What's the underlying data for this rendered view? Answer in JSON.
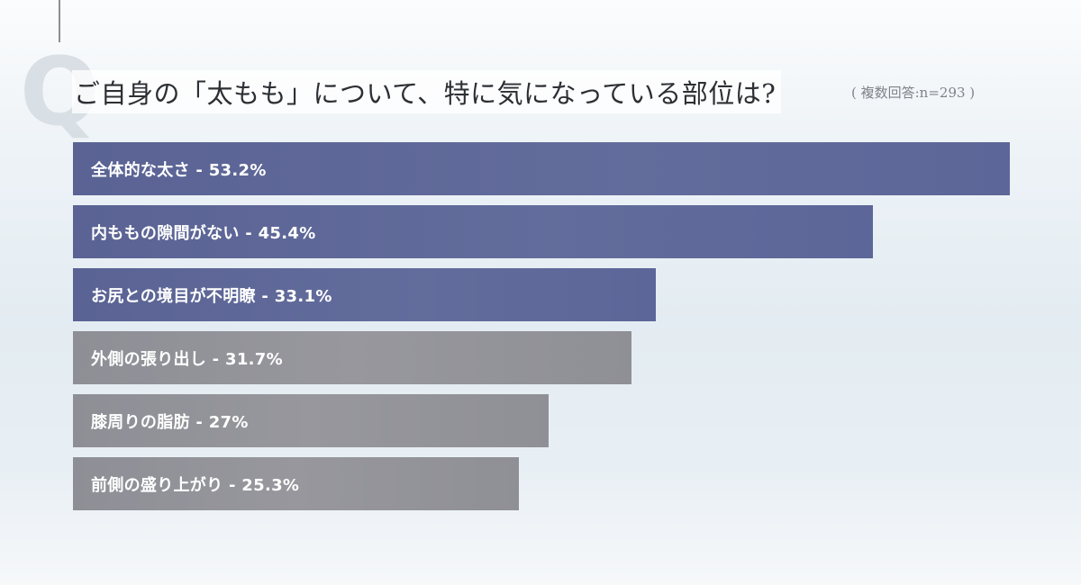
{
  "title": "ご自身の「太もも」について、特に気になっている部位は?",
  "note": "( 複数回答:n=293 )",
  "q_mark": "Q",
  "colors": {
    "highlight": "#5f6999",
    "muted": "#939399",
    "title": "#2c2f33"
  },
  "chart_data": {
    "type": "bar",
    "orientation": "horizontal",
    "title": "ご自身の「太もも」について、特に気になっている部位は?",
    "subtitle": "( 複数回答:n=293 )",
    "unit": "%",
    "xlim": [
      0,
      53.2
    ],
    "categories": [
      "全体的な太さ",
      "内ももの隙間がない",
      "お尻との境目が不明瞭",
      "外側の張り出し",
      "膝周りの脂肪",
      "前側の盛り上がり"
    ],
    "values": [
      53.2,
      45.4,
      33.1,
      31.7,
      27,
      25.3
    ],
    "labels": [
      "全体的な太さ - 53.2%",
      "内ももの隙間がない - 45.4%",
      "お尻との境目が不明瞭 - 33.1%",
      "外側の張り出し - 31.7%",
      "膝周りの脂肪 - 27%",
      "前側の盛り上がり - 25.3%"
    ],
    "highlight": [
      true,
      true,
      true,
      false,
      false,
      false
    ]
  }
}
